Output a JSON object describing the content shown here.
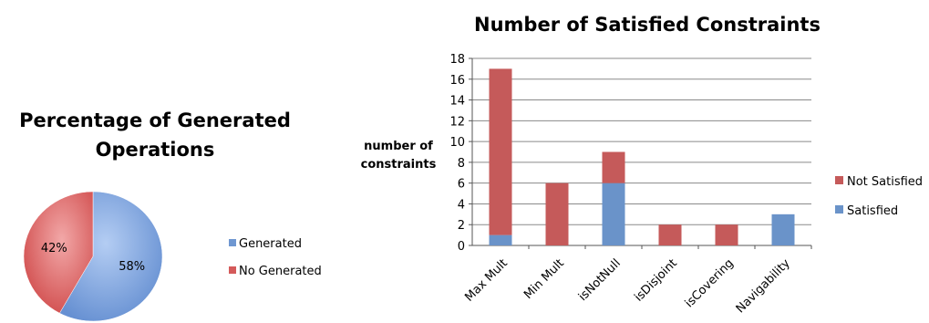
{
  "chart_data": [
    {
      "type": "pie",
      "title_line1": "Percentage of Generated",
      "title_line2": "Operations",
      "slices": [
        {
          "label": "Generated",
          "value": 58,
          "display": "58%",
          "color": "#6f97d1"
        },
        {
          "label": "No Generated",
          "value": 42,
          "display": "42%",
          "color": "#d45a5a"
        }
      ],
      "legend": "right"
    },
    {
      "type": "bar",
      "stacked": true,
      "title": "Number of Satisfied Constraints",
      "ylabel_line1": "number of",
      "ylabel_line2": "constraints",
      "ylim": [
        0,
        18
      ],
      "yticks": [
        0,
        2,
        4,
        6,
        8,
        10,
        12,
        14,
        16,
        18
      ],
      "categories": [
        "Max Mult",
        "Min Mult",
        "isNotNull",
        "isDisjoint",
        "isCovering",
        "Navigability"
      ],
      "series": [
        {
          "name": "Satisfied",
          "color": "#6a93c9",
          "values": [
            1,
            0,
            6,
            0,
            0,
            3
          ]
        },
        {
          "name": "Not Satisfied",
          "color": "#c55a5a",
          "values": [
            16,
            6,
            3,
            2,
            2,
            0
          ]
        }
      ],
      "grid": true,
      "legend": "right"
    }
  ]
}
